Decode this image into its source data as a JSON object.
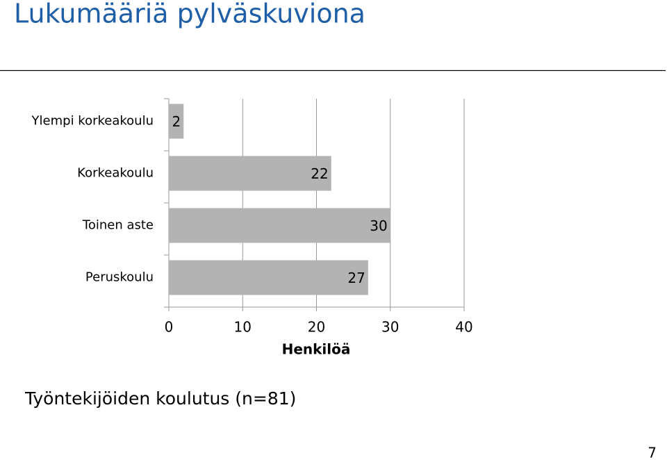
{
  "slide": {
    "title": "Lukumääriä pylväskuviona",
    "page_number": "7"
  },
  "chart_data": {
    "type": "barh",
    "title": "Työntekijöiden koulutus (n=81)",
    "categories": [
      "Ylempi korkeakoulu",
      "Korkeakoulu",
      "Toinen aste",
      "Peruskoulu"
    ],
    "values": [
      2,
      22,
      30,
      27
    ],
    "color": "#b3b3b3",
    "x_label": "Henkilöä",
    "xlim": [
      0,
      40
    ],
    "xticks": [
      0,
      10,
      20,
      30,
      40
    ],
    "grid": true
  }
}
